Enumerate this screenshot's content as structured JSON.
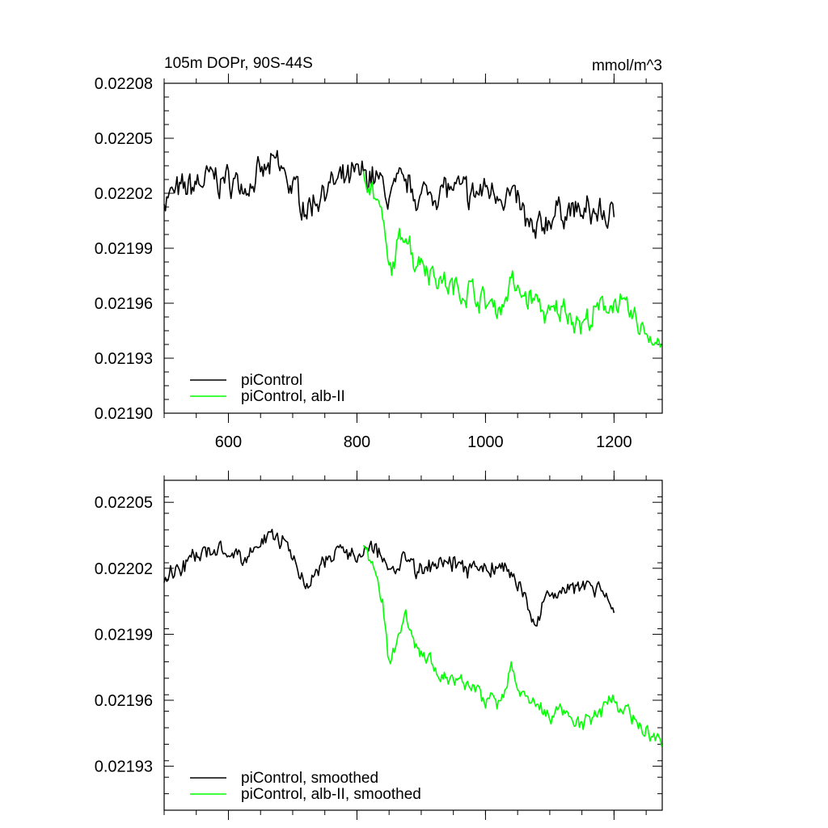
{
  "chart_data": [
    {
      "type": "line",
      "title": "105m DOPr, 90S-44S",
      "units": "mmol/m^3",
      "xlim": [
        500,
        1275
      ],
      "ylim": [
        0.0219,
        0.02208
      ],
      "x_ticks": [
        600,
        800,
        1000,
        1200
      ],
      "x_tick_labels": [
        "600",
        "800",
        "1000",
        "1200"
      ],
      "y_ticks": [
        0.0219,
        0.02193,
        0.02196,
        0.02199,
        0.02202,
        0.02205,
        0.02208
      ],
      "y_tick_labels": [
        "0.02190",
        "0.02193",
        "0.02196",
        "0.02199",
        "0.02202",
        "0.02205",
        "0.02208"
      ],
      "legend": [
        "piControl",
        "piControl, alb-II"
      ],
      "legend_position": "bottom-left",
      "series": [
        {
          "name": "piControl",
          "color": "#000000",
          "x": [
            500,
            525,
            550,
            575,
            600,
            625,
            650,
            675,
            700,
            725,
            750,
            775,
            800,
            825,
            850,
            875,
            900,
            925,
            950,
            975,
            1000,
            1025,
            1050,
            1075,
            1100,
            1125,
            1150,
            1175,
            1200
          ],
          "y": [
            0.022018,
            0.02202,
            0.022025,
            0.022028,
            0.022027,
            0.022025,
            0.022029,
            0.022036,
            0.022023,
            0.022012,
            0.022024,
            0.022025,
            0.022029,
            0.02203,
            0.022018,
            0.022025,
            0.022018,
            0.022022,
            0.022022,
            0.022018,
            0.022022,
            0.022022,
            0.022014,
            0.021995,
            0.022008,
            0.022012,
            0.022008,
            0.02201,
            0.022005
          ],
          "noise": 1.4e-05
        },
        {
          "name": "piControl, alb-II",
          "color": "#00ff00",
          "x": [
            810,
            825,
            840,
            850,
            860,
            875,
            890,
            900,
            925,
            950,
            975,
            1000,
            1025,
            1040,
            1050,
            1075,
            1100,
            1125,
            1150,
            1175,
            1200,
            1225,
            1250,
            1275
          ],
          "y": [
            0.022035,
            0.022022,
            0.022005,
            0.021975,
            0.021985,
            0.022003,
            0.021983,
            0.021985,
            0.021974,
            0.021968,
            0.021968,
            0.02196,
            0.021958,
            0.021972,
            0.021965,
            0.021962,
            0.021952,
            0.021958,
            0.021948,
            0.021955,
            0.021962,
            0.021952,
            0.021945,
            0.021938
          ],
          "noise": 1.2e-05
        }
      ]
    },
    {
      "type": "line",
      "xlim": [
        500,
        1275
      ],
      "ylim": [
        0.02191,
        0.02206
      ],
      "x_ticks": [
        600,
        800,
        1000,
        1200
      ],
      "y_ticks": [
        0.02193,
        0.02196,
        0.02199,
        0.02202,
        0.02205
      ],
      "y_tick_labels": [
        "0.02193",
        "0.02196",
        "0.02199",
        "0.02202",
        "0.02205"
      ],
      "legend": [
        "piControl, smoothed",
        "piControl, alb-II, smoothed"
      ],
      "legend_position": "bottom-left",
      "series": [
        {
          "name": "piControl, smoothed",
          "color": "#000000",
          "x": [
            500,
            525,
            550,
            575,
            600,
            625,
            650,
            675,
            700,
            725,
            750,
            775,
            800,
            825,
            850,
            875,
            900,
            925,
            950,
            975,
            1000,
            1025,
            1050,
            1075,
            1100,
            1125,
            1150,
            1175,
            1200
          ],
          "y": [
            0.022018,
            0.02202,
            0.022025,
            0.022028,
            0.022027,
            0.022025,
            0.022029,
            0.022036,
            0.022023,
            0.022012,
            0.022024,
            0.022025,
            0.022029,
            0.02203,
            0.022018,
            0.022025,
            0.022018,
            0.022022,
            0.022022,
            0.022018,
            0.022022,
            0.022022,
            0.022014,
            0.021995,
            0.022008,
            0.022012,
            0.022008,
            0.02201,
            0.022005
          ],
          "noise": 7e-06
        },
        {
          "name": "piControl, alb-II, smoothed",
          "color": "#00ff00",
          "x": [
            810,
            825,
            840,
            850,
            860,
            875,
            890,
            900,
            925,
            950,
            975,
            1000,
            1025,
            1040,
            1050,
            1075,
            1100,
            1125,
            1150,
            1175,
            1200,
            1225,
            1250,
            1275
          ],
          "y": [
            0.022032,
            0.02202,
            0.022005,
            0.021978,
            0.021985,
            0.022,
            0.021984,
            0.021982,
            0.021973,
            0.021968,
            0.021967,
            0.02196,
            0.021958,
            0.021975,
            0.021966,
            0.021962,
            0.021952,
            0.021958,
            0.021948,
            0.021955,
            0.021962,
            0.021952,
            0.021945,
            0.021941
          ],
          "noise": 6e-06
        }
      ]
    }
  ]
}
